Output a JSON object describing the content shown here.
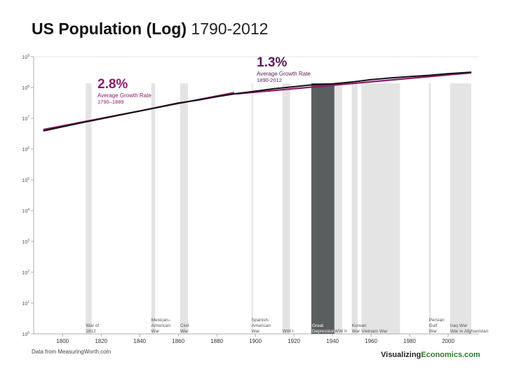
{
  "header": {
    "title": "US Population (Log)",
    "years": "1790-2012"
  },
  "footer": {
    "source": "Data from MeasuringWorth.com",
    "brand_prefix": "Visualizing",
    "brand_suffix": "Economics.com"
  },
  "colors": {
    "accent": "#8b1a6b",
    "line": "#111111",
    "band": "#e4e4e4",
    "great_depression": "#5a5e5e",
    "brand_green": "#2b7a2b"
  },
  "chart_data": {
    "type": "line",
    "title": "US Population (Log)",
    "subtitle": "1790-2012",
    "xlabel": "",
    "ylabel": "",
    "scale": "log",
    "xlim": [
      1785,
      2016
    ],
    "ylim": [
      0,
      9
    ],
    "x_ticks": [
      1800,
      1820,
      1840,
      1860,
      1880,
      1900,
      1920,
      1940,
      1960,
      1980,
      2000
    ],
    "y_ticks": [
      {
        "base": "10",
        "exp": "0"
      },
      {
        "base": "10",
        "exp": "1"
      },
      {
        "base": "10",
        "exp": "2"
      },
      {
        "base": "10",
        "exp": "3"
      },
      {
        "base": "10",
        "exp": "4"
      },
      {
        "base": "10",
        "exp": "5"
      },
      {
        "base": "10",
        "exp": "6"
      },
      {
        "base": "10",
        "exp": "7"
      },
      {
        "base": "10",
        "exp": "8"
      },
      {
        "base": "10",
        "exp": "9"
      }
    ],
    "grid": false,
    "series": [
      {
        "x": [
          1790,
          1800,
          1810,
          1820,
          1830,
          1840,
          1850,
          1860,
          1870,
          1880,
          1890,
          1900,
          1910,
          1920,
          1930,
          1940,
          1950,
          1960,
          1970,
          1980,
          1990,
          2000,
          2012
        ],
        "y": [
          3900000,
          5300000,
          7200000,
          9600000,
          12900000,
          17100000,
          23200000,
          31400000,
          38600000,
          50200000,
          63000000,
          76200000,
          92200000,
          106000000,
          123200000,
          132200000,
          151300000,
          179300000,
          203300000,
          226500000,
          248700000,
          281400000,
          313900000
        ]
      }
    ],
    "trends": [
      {
        "rate": "2.8%",
        "label": "Average Growth Rate",
        "period": "1790–1889",
        "x": [
          1790,
          1889
        ],
        "y": [
          4300000,
          68000000
        ]
      },
      {
        "rate": "1.3%",
        "label": "Average Growth Rate",
        "period": "1890-2012",
        "x": [
          1890,
          2012
        ],
        "y": [
          62000000,
          300000000
        ]
      }
    ],
    "events": [
      {
        "label": "War of\n1812",
        "start": 1812,
        "end": 1815
      },
      {
        "label": "Mexican–\nAmerican\nWar",
        "start": 1846,
        "end": 1848
      },
      {
        "label": "Civil\nWar",
        "start": 1861,
        "end": 1865
      },
      {
        "label": "Spanish-\nAmerican\nWar",
        "start": 1898,
        "end": 1898.6
      },
      {
        "label": "WW I",
        "start": 1914,
        "end": 1918
      },
      {
        "label": "Great\nDepression",
        "start": 1929,
        "end": 1941,
        "dark": true
      },
      {
        "label": "WW II",
        "start": 1941,
        "end": 1945
      },
      {
        "label": "Korean\nWar",
        "start": 1950,
        "end": 1953
      },
      {
        "label": "Vietnam War",
        "start": 1955,
        "end": 1975
      },
      {
        "label": "Persian\nGulf\nWar",
        "start": 1990,
        "end": 1991
      },
      {
        "label": "Iraq War\nWar in Afghanistan",
        "start": 2001,
        "end": 2012
      }
    ]
  }
}
